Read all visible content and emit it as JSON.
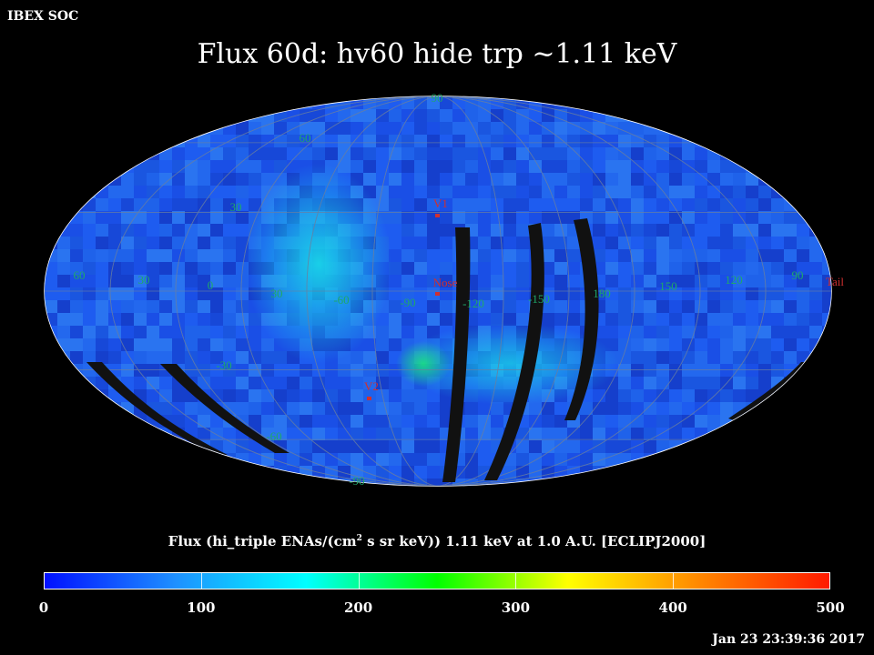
{
  "header": {
    "soc_label": "IBEX SOC",
    "title": "Flux   60d: hv60 hide trp ~1.11 keV"
  },
  "map": {
    "projection": "mollweide",
    "latitude_labels": [
      "60",
      "30",
      "-30",
      "-60"
    ],
    "pole_labels": [
      "90",
      "-90"
    ],
    "longitude_labels": [
      "60",
      "30",
      "0",
      "30",
      "-60",
      "-90",
      "-120",
      "-150",
      "180",
      "150",
      "120",
      "90"
    ],
    "markers": [
      {
        "name": "V1",
        "label": "V1"
      },
      {
        "name": "Nose",
        "label": "Nose"
      },
      {
        "name": "V2",
        "label": "V2"
      },
      {
        "name": "Tail",
        "label": "Tail"
      }
    ],
    "colors": {
      "background_flux": "#1a4fe6",
      "enhanced_flux": "#19d6e8",
      "peak_flux": "#19e080",
      "gap_stripe": "#111111",
      "grid": "#6a7fa0",
      "label": "#1fa86a",
      "marker": "#d03030"
    }
  },
  "colorbar": {
    "title_prefix": "Flux (hi_triple ENAs/(cm",
    "title_sup": "2",
    "title_suffix": " s sr keV))  1.11 keV at 1.0 A.U. [ECLIPJ2000]",
    "ticks": [
      "0",
      "100",
      "200",
      "300",
      "400",
      "500"
    ],
    "range": [
      0,
      500
    ],
    "stops": [
      "#0010ff",
      "#1e90ff",
      "#00ffff",
      "#00ff00",
      "#ffff00",
      "#ff8800",
      "#ff1a00"
    ]
  },
  "footer": {
    "timestamp": "Jan 23 23:39:36 2017"
  }
}
